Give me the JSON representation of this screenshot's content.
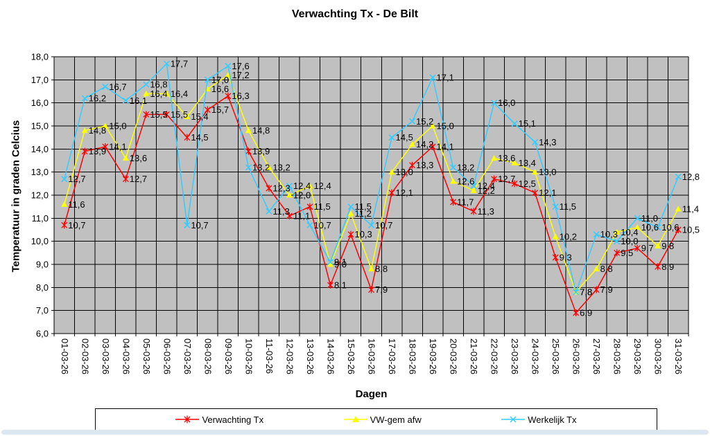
{
  "title": "Verwachting Tx - De Bilt",
  "chart_data": {
    "type": "line",
    "title": "Verwachting Tx - De Bilt",
    "xlabel": "Dagen",
    "ylabel": "Temperatuur in graden Celcius",
    "ylim": [
      6.0,
      18.0
    ],
    "ytick_step": 1.0,
    "decimal_comma": true,
    "grid": true,
    "plot_bg": "#c0c0c0",
    "grid_color": "#000000",
    "data_labels": true,
    "legend_position": "bottom",
    "categories": [
      "01-03-26",
      "02-03-26",
      "03-03-26",
      "04-03-26",
      "05-03-26",
      "06-03-26",
      "07-03-26",
      "08-03-26",
      "09-03-26",
      "10-03-26",
      "11-03-26",
      "12-03-26",
      "13-03-26",
      "14-03-26",
      "15-03-26",
      "16-03-26",
      "17-03-26",
      "18-03-26",
      "19-03-26",
      "20-03-26",
      "21-03-26",
      "22-03-26",
      "23-03-26",
      "24-03-26",
      "25-03-26",
      "26-03-26",
      "27-03-26",
      "28-03-26",
      "29-03-26",
      "30-03-26",
      "31-03-26"
    ],
    "series": [
      {
        "name": "Verwachting Tx",
        "color": "#ff0000",
        "marker": "star",
        "values": [
          10.7,
          13.9,
          14.1,
          12.7,
          15.5,
          15.5,
          14.5,
          15.7,
          16.3,
          13.9,
          12.3,
          11.1,
          11.5,
          8.1,
          10.3,
          7.9,
          12.1,
          13.3,
          14.1,
          11.7,
          11.3,
          12.7,
          12.5,
          12.1,
          9.3,
          6.9,
          7.9,
          9.5,
          9.7,
          8.9,
          10.5
        ]
      },
      {
        "name": "VW-gem afw",
        "color": "#ffff00",
        "marker": "triangle",
        "values": [
          11.6,
          14.8,
          15.0,
          13.6,
          16.4,
          16.4,
          15.4,
          16.6,
          17.2,
          14.8,
          13.2,
          12.0,
          12.4,
          9.0,
          11.2,
          8.8,
          13.0,
          14.2,
          15.0,
          12.6,
          12.2,
          13.6,
          13.4,
          13.0,
          10.2,
          7.8,
          8.8,
          10.4,
          10.6,
          9.8,
          11.4
        ]
      },
      {
        "name": "Werkelijk Tx",
        "color": "#33ccff",
        "marker": "x",
        "values": [
          12.7,
          16.2,
          16.7,
          16.1,
          16.8,
          17.7,
          10.7,
          17.0,
          17.6,
          13.2,
          11.3,
          12.4,
          10.7,
          9.1,
          11.5,
          10.7,
          14.5,
          15.2,
          17.1,
          13.2,
          12.4,
          16.0,
          15.1,
          14.3,
          11.5,
          7.8,
          10.3,
          10.0,
          11.0,
          10.6,
          12.8
        ]
      }
    ]
  }
}
